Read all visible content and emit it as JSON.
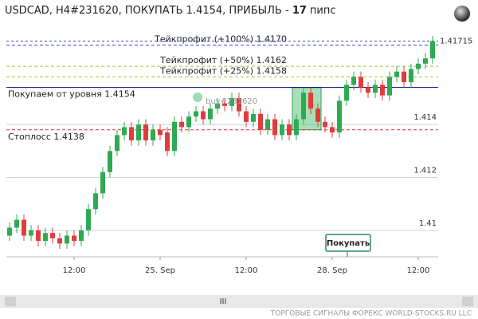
{
  "chart_data": {
    "type": "candlestick",
    "title_prefix": "USDCAD, H4#231620, ПОКУПАТЬ 1.4154, ПРИБЫЛЬ - ",
    "profit": "17",
    "profit_unit": "пипс",
    "categories": [
      null,
      null,
      null,
      null,
      null,
      null,
      null,
      null,
      null,
      "12:00",
      null,
      null,
      null,
      null,
      null,
      null,
      null,
      null,
      null,
      null,
      null,
      "25. Sep",
      null,
      null,
      null,
      null,
      null,
      null,
      null,
      null,
      null,
      null,
      null,
      "12:00",
      null,
      null,
      null,
      null,
      null,
      null,
      null,
      null,
      null,
      null,
      null,
      "28. Sep",
      null,
      null,
      null,
      null,
      null,
      null,
      null,
      null,
      null,
      null,
      null,
      "12:00",
      null,
      null
    ],
    "open": [
      1.4098,
      1.4101,
      1.4104,
      1.4098,
      1.41,
      1.4096,
      1.4099,
      1.4097,
      1.4095,
      1.4098,
      1.4096,
      1.41,
      1.4108,
      1.4114,
      1.4122,
      1.413,
      1.4136,
      1.4139,
      1.4134,
      1.414,
      1.4134,
      1.4138,
      1.4137,
      1.413,
      1.4141,
      1.4139,
      1.4143,
      1.4145,
      1.4142,
      1.4146,
      1.4148,
      1.4147,
      1.415,
      1.4145,
      1.4141,
      1.4144,
      1.4138,
      1.4142,
      1.4136,
      1.414,
      1.4136,
      1.4142,
      1.4152,
      1.4146,
      1.4141,
      1.4139,
      1.4137,
      1.4149,
      1.4155,
      1.4158,
      1.4154,
      1.4152,
      1.4155,
      1.4151,
      1.4158,
      1.416,
      1.4156,
      1.4161,
      1.4163,
      1.4165
    ],
    "high": [
      1.4103,
      1.4106,
      1.4106,
      1.4102,
      1.4102,
      1.4101,
      1.4101,
      1.4099,
      1.41,
      1.41,
      1.4102,
      1.411,
      1.4116,
      1.4124,
      1.4132,
      1.4138,
      1.4141,
      1.4141,
      1.4142,
      1.4142,
      1.414,
      1.414,
      1.4139,
      1.4143,
      1.4143,
      1.4145,
      1.4147,
      1.4147,
      1.4148,
      1.415,
      1.415,
      1.4152,
      1.4152,
      1.4147,
      1.4146,
      1.4146,
      1.4144,
      1.4144,
      1.4142,
      1.4142,
      1.4144,
      1.4154,
      1.4154,
      1.4148,
      1.4143,
      1.4141,
      1.4151,
      1.4157,
      1.416,
      1.416,
      1.4156,
      1.4157,
      1.4157,
      1.416,
      1.4162,
      1.4162,
      1.4163,
      1.4165,
      1.4167,
      1.41735
    ],
    "low": [
      1.4096,
      1.4099,
      1.4096,
      1.4096,
      1.4094,
      1.4094,
      1.4095,
      1.4093,
      1.4093,
      1.4094,
      1.4094,
      1.4098,
      1.4106,
      1.4112,
      1.412,
      1.4128,
      1.4134,
      1.4132,
      1.4132,
      1.4132,
      1.4132,
      1.4134,
      1.4128,
      1.4128,
      1.4137,
      1.4137,
      1.4141,
      1.414,
      1.414,
      1.4144,
      1.4145,
      1.4145,
      1.4143,
      1.4139,
      1.4139,
      1.4136,
      1.4136,
      1.4134,
      1.4134,
      1.4134,
      1.4134,
      1.414,
      1.4144,
      1.4139,
      1.4137,
      1.4135,
      1.4135,
      1.4147,
      1.4153,
      1.4152,
      1.415,
      1.415,
      1.4149,
      1.4149,
      1.4156,
      1.4154,
      1.4154,
      1.4159,
      1.4161,
      1.4163
    ],
    "close": [
      1.4101,
      1.4104,
      1.4098,
      1.41,
      1.4096,
      1.4099,
      1.4097,
      1.4095,
      1.4098,
      1.4096,
      1.41,
      1.4108,
      1.4114,
      1.4122,
      1.413,
      1.4136,
      1.4139,
      1.4134,
      1.414,
      1.4134,
      1.4138,
      1.4136,
      1.413,
      1.4141,
      1.4139,
      1.4143,
      1.4145,
      1.4142,
      1.4146,
      1.4148,
      1.4147,
      1.415,
      1.4145,
      1.4141,
      1.4144,
      1.4138,
      1.4142,
      1.4136,
      1.414,
      1.4136,
      1.4142,
      1.4152,
      1.4146,
      1.4141,
      1.4139,
      1.4137,
      1.4149,
      1.4155,
      1.4158,
      1.4154,
      1.4152,
      1.4155,
      1.4151,
      1.4158,
      1.416,
      1.4156,
      1.4161,
      1.4163,
      1.4165,
      1.41715
    ],
    "up_color": "#2eaa52",
    "down_color": "#e03c3c",
    "ylim": [
      1.409,
      1.4175
    ],
    "yticks": [
      1.41,
      1.412,
      1.414
    ],
    "grid": true,
    "last_price": 1.41715,
    "levels": [
      {
        "label": "Тейкпрофит (+100%) 1.4170",
        "value": 1.417,
        "color": "#3344cc",
        "dashed": true
      },
      {
        "label": "Тейкпрофит (+50%) 1.4162",
        "value": 1.4162,
        "color": "#99cc33",
        "dashed": true
      },
      {
        "label": "Тейкпрофит (+25%) 1.4158",
        "value": 1.4158,
        "color": "#99cc33",
        "dashed": true
      },
      {
        "label": "Покупаем от уровня 1.4154",
        "value": 1.4154,
        "color": "#000080",
        "dashed": false
      },
      {
        "label": "Стоплосс 1.4138",
        "value": 1.4138,
        "color": "#e03030",
        "dashed": true
      }
    ],
    "order_tag": "buy#231620",
    "button": "Покупать",
    "footer": "ТОРГОВЫЕ СИГНАЛЫ ФОРЕКС WORLD-STOCKS.RU LLC"
  }
}
